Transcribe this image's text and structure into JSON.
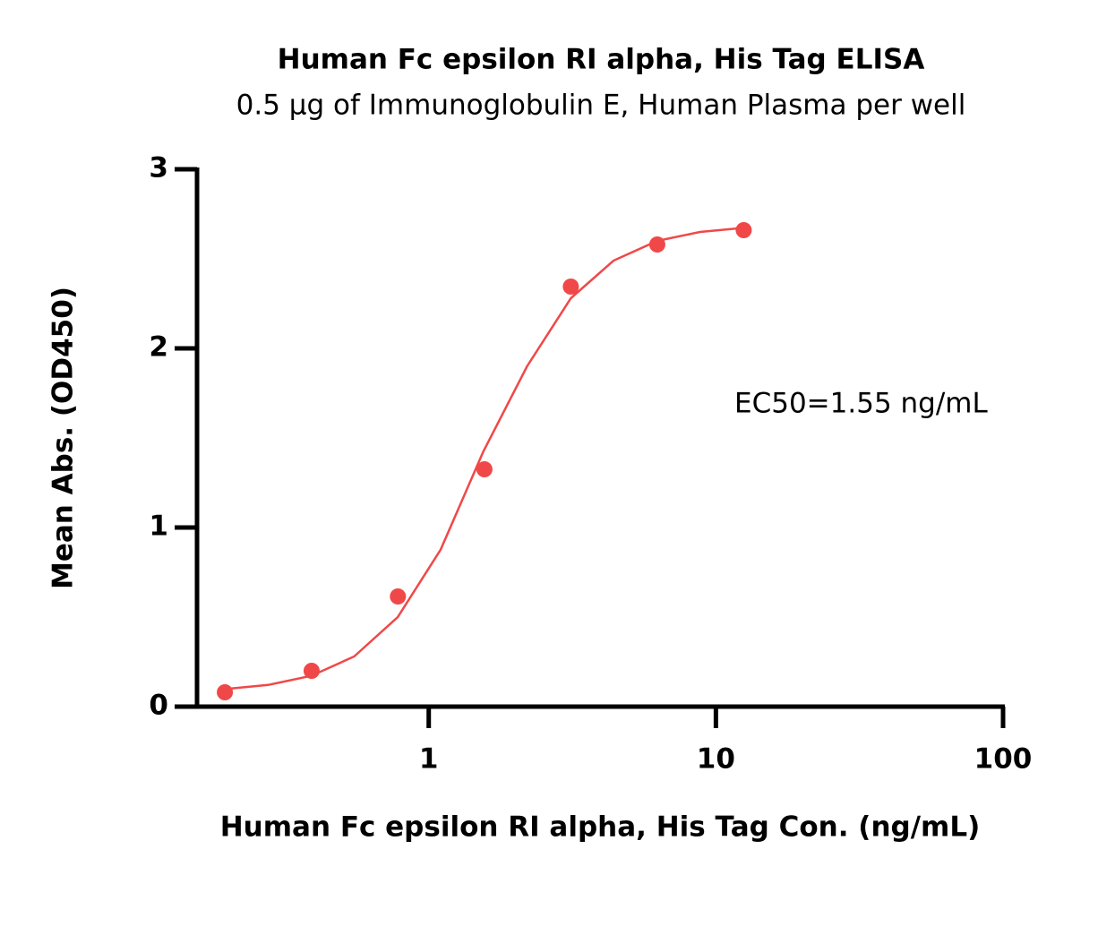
{
  "chart_data": {
    "type": "scatter",
    "title": "Human Fc epsilon RI alpha, His Tag ELISA",
    "subtitle": "0.5 μg of Immunoglobulin E, Human Plasma per well",
    "x_label": "Human Fc epsilon RI alpha, His Tag Con. (ng/mL)",
    "y_label": "Mean Abs. (OD450)",
    "annotation": "EC50=1.55 ng/mL",
    "xscale": "log",
    "xlim": [
      0.156,
      100
    ],
    "xticks": [
      1,
      10,
      100
    ],
    "ylim": [
      0,
      3
    ],
    "yticks": [
      0,
      1,
      2,
      3
    ],
    "series": [
      {
        "type": "scatter",
        "color": "#f04848",
        "x": [
          0.195,
          0.391,
          0.781,
          1.563,
          3.125,
          6.25,
          12.5
        ],
        "values": [
          0.08,
          0.2,
          0.615,
          1.325,
          2.345,
          2.58,
          2.66
        ]
      },
      {
        "type": "line",
        "color": "#f04848",
        "x": [
          0.195,
          0.276,
          0.39,
          0.55,
          0.78,
          1.1,
          1.55,
          2.2,
          3.125,
          4.4,
          6.25,
          8.8,
          12.5
        ],
        "values": [
          0.098,
          0.121,
          0.172,
          0.28,
          0.5,
          0.876,
          1.425,
          1.9,
          2.28,
          2.49,
          2.6,
          2.65,
          2.673
        ]
      }
    ]
  }
}
